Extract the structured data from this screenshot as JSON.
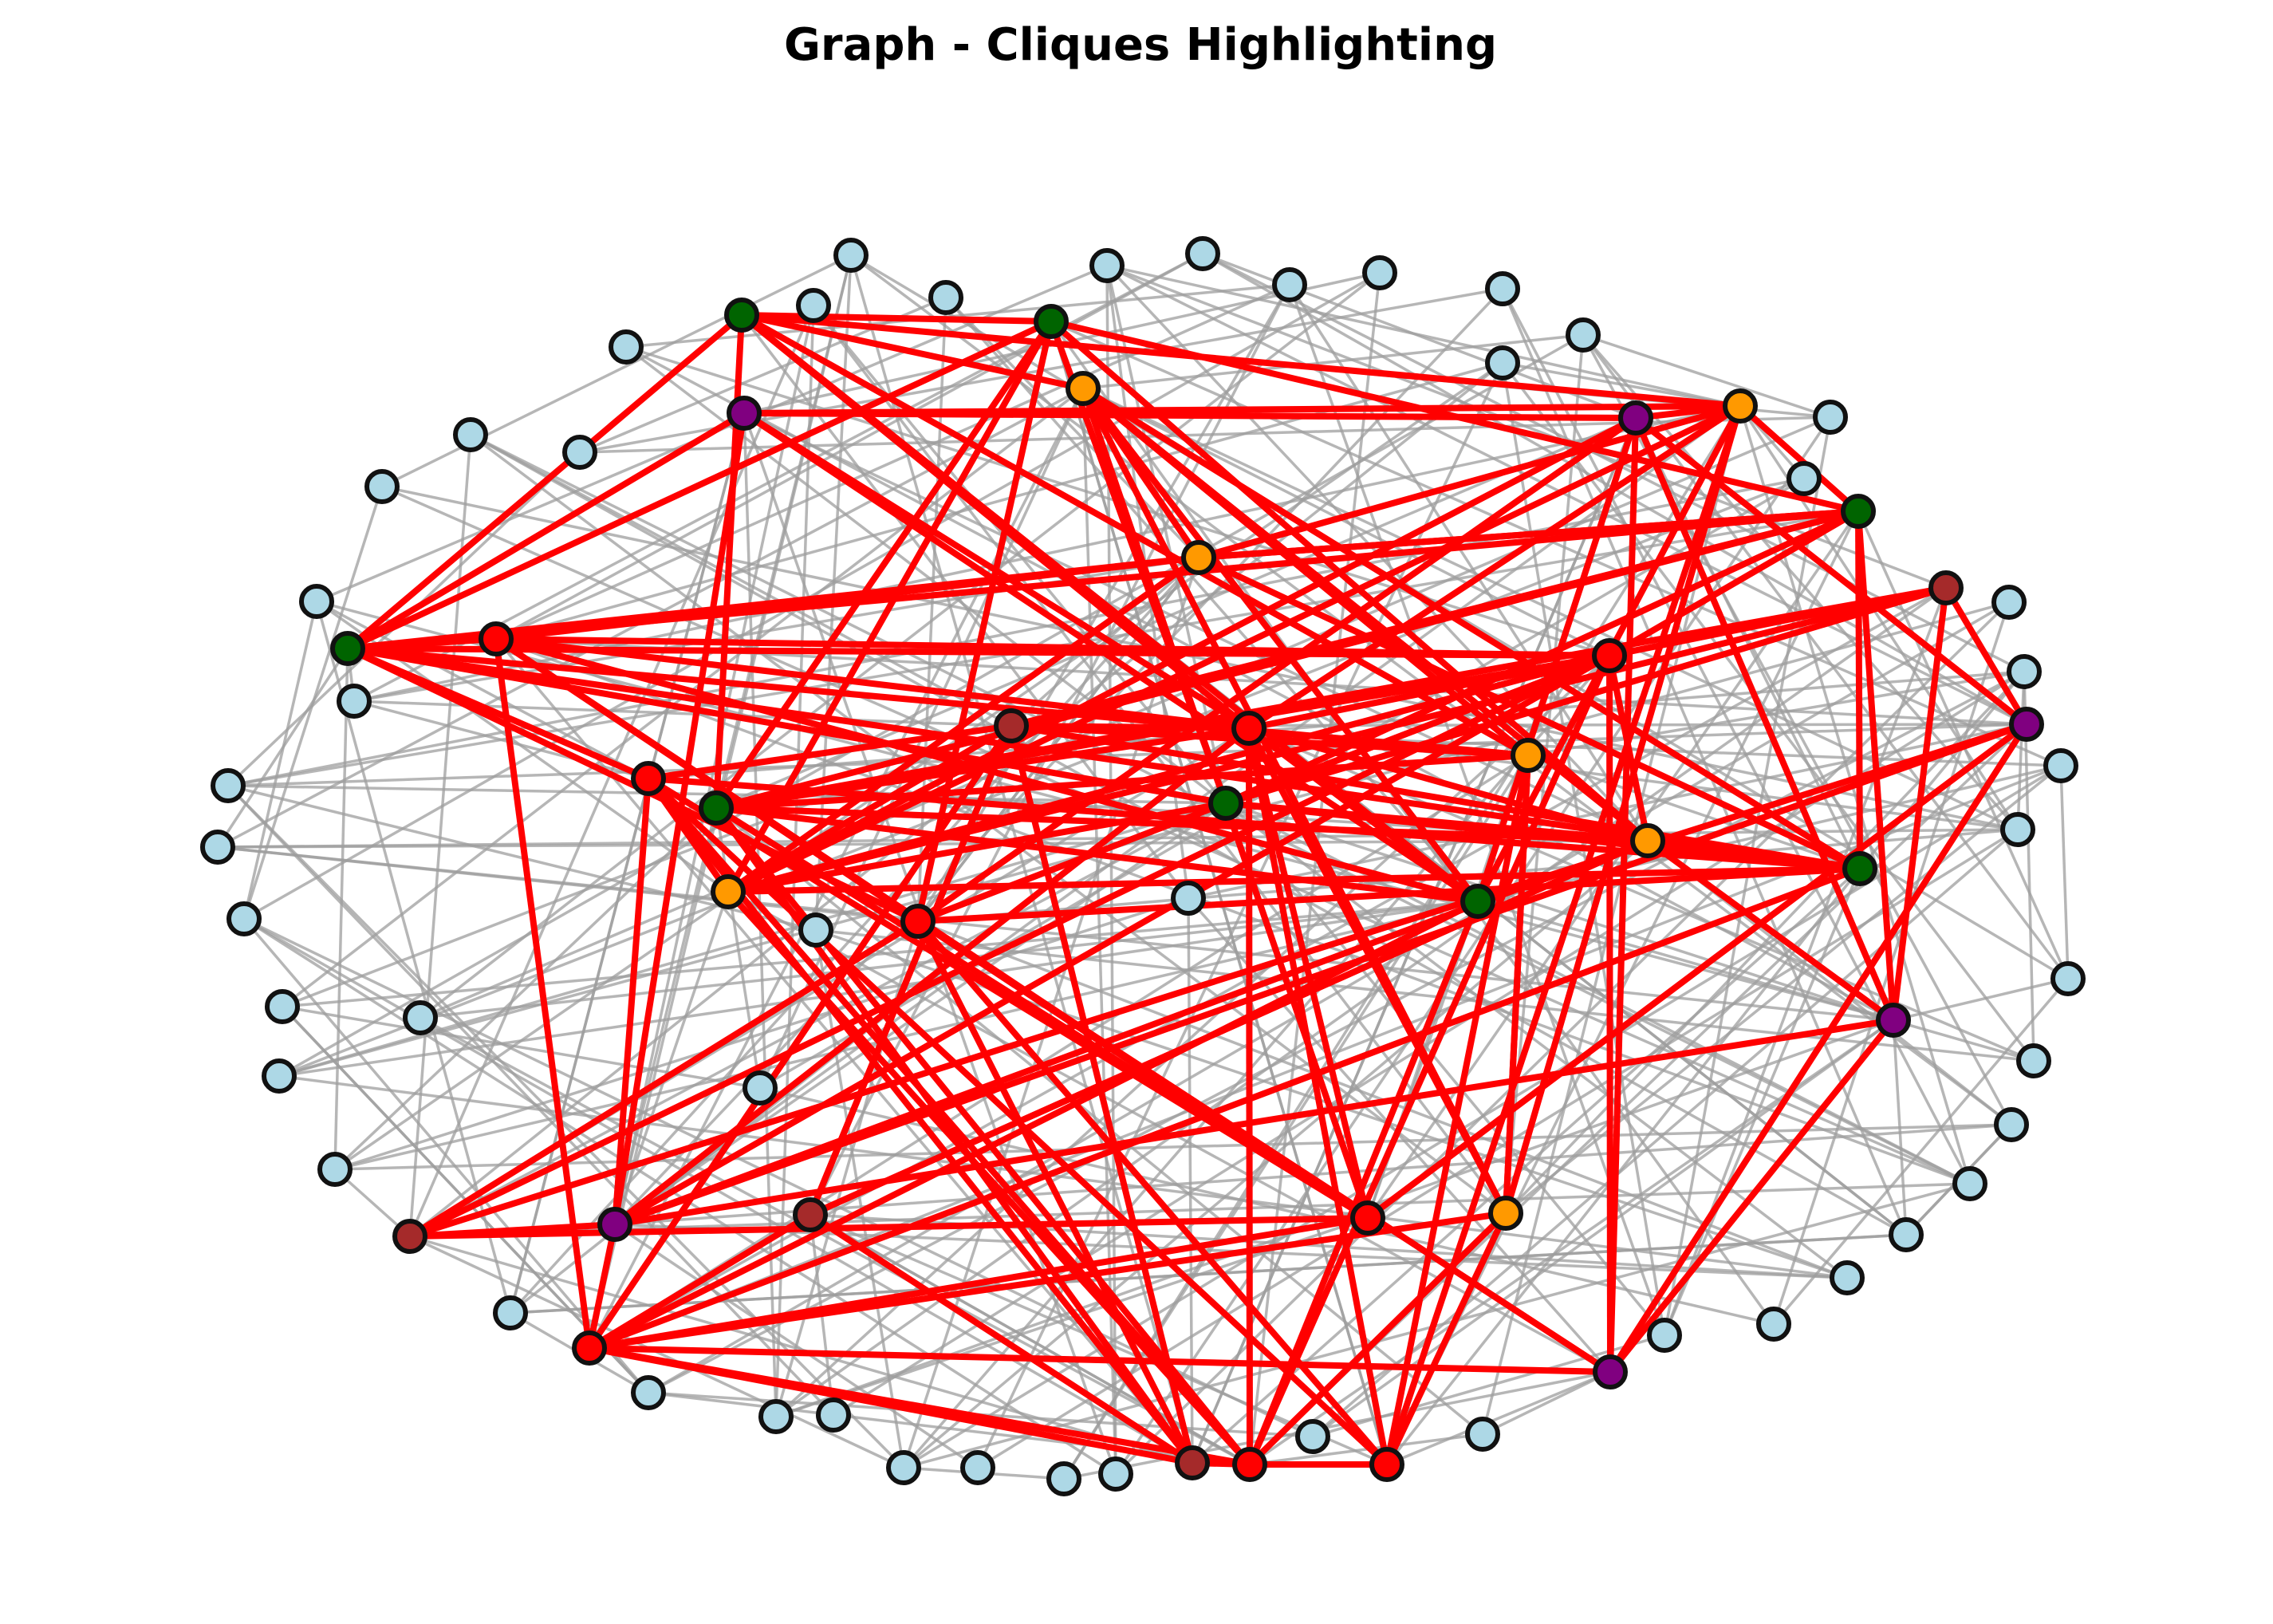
{
  "title": "Graph - Cliques Highlighting",
  "colors": {
    "background": "#ffffff",
    "node_default": "#add8e6",
    "node_outline": "#111111",
    "edge_default": "#9e9e9e",
    "edge_highlight": "#ff0000"
  },
  "legend": "none",
  "clique_colors": [
    "#006400",
    "#ff9900",
    "#800080",
    "#ff0000",
    "#a52a2a"
  ]
}
